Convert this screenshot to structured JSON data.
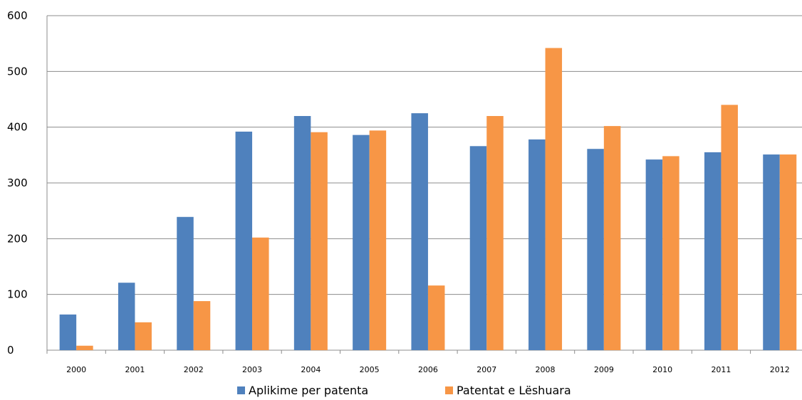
{
  "chart_data": {
    "type": "bar",
    "title": "",
    "xlabel": "",
    "ylabel": "",
    "categories": [
      "2000",
      "2001",
      "2002",
      "2003",
      "2004",
      "2005",
      "2006",
      "2007",
      "2008",
      "2009",
      "2010",
      "2011",
      "2012"
    ],
    "series": [
      {
        "name": "Aplikime per patenta",
        "color": "#4f81bd",
        "values": [
          64,
          121,
          239,
          392,
          420,
          386,
          425,
          366,
          378,
          361,
          342,
          355,
          351
        ]
      },
      {
        "name": "Patentat e Lëshuara",
        "color": "#f79646",
        "values": [
          8,
          50,
          88,
          202,
          391,
          394,
          116,
          420,
          542,
          402,
          348,
          440,
          351
        ]
      }
    ],
    "ylim": [
      0,
      600
    ],
    "yticks": [
      "0",
      "100",
      "200",
      "300",
      "400",
      "500",
      "600"
    ],
    "grid": true,
    "legend_position": "bottom"
  }
}
